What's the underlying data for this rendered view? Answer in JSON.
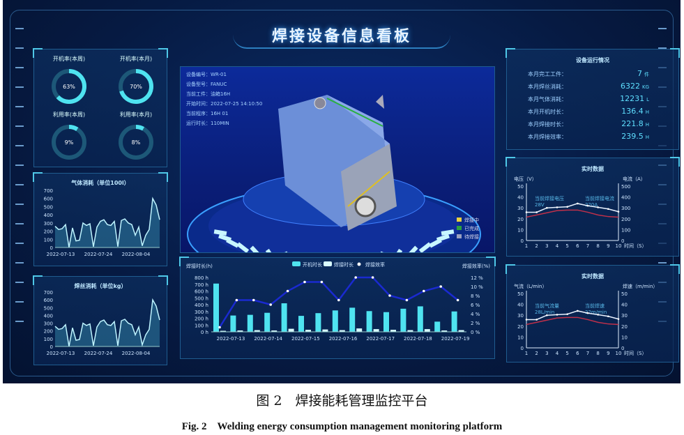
{
  "dashboard_title": "焊接设备信息看板",
  "gauges": [
    {
      "label": "开机率(本周)",
      "value": 63,
      "text": "63%"
    },
    {
      "label": "开机率(本月)",
      "value": 70,
      "text": "70%"
    },
    {
      "label": "利用率(本周)",
      "value": 9,
      "text": "9%"
    },
    {
      "label": "利用率(本月)",
      "value": 8,
      "text": "8%"
    }
  ],
  "colors": {
    "accent": "#4fe3f0",
    "bar_on": "#4fe3f0",
    "bar_weld": "#d8fbff",
    "line_eff": "#1a2ad0",
    "line_white": "#e8f2ff",
    "line_red": "#c0304a",
    "bg": "#061a42"
  },
  "chart_data": [
    {
      "type": "area",
      "title": "气体消耗（单位100l）",
      "ylim": [
        0,
        700
      ],
      "yticks": [
        0,
        100,
        200,
        300,
        400,
        500,
        600,
        700
      ],
      "xticks": [
        "2022-07-13",
        "2022-07-24",
        "2022-08-04"
      ],
      "values": [
        260,
        220,
        230,
        280,
        0,
        240,
        80,
        90,
        300,
        270,
        290,
        10,
        250,
        320,
        340,
        280,
        270,
        320,
        10,
        330,
        350,
        300,
        280,
        150,
        250,
        20,
        150,
        220,
        600,
        520,
        340
      ]
    },
    {
      "type": "area",
      "title": "焊丝消耗（单位kg）",
      "ylim": [
        0,
        700
      ],
      "yticks": [
        0,
        100,
        200,
        300,
        400,
        500,
        600,
        700
      ],
      "xticks": [
        "2022-07-13",
        "2022-07-24",
        "2022-08-04"
      ],
      "values": [
        260,
        220,
        230,
        280,
        0,
        240,
        80,
        90,
        300,
        270,
        290,
        10,
        250,
        320,
        340,
        280,
        270,
        320,
        10,
        330,
        350,
        300,
        280,
        150,
        250,
        20,
        150,
        220,
        600,
        520,
        340
      ]
    },
    {
      "type": "bar",
      "ylabel": "焊接时长(h)",
      "y2label": "焊接效率(%)",
      "ylim": [
        0,
        800
      ],
      "y2lim": [
        0,
        12
      ],
      "yticks": [
        "0 h",
        "100 h",
        "200 h",
        "300 h",
        "400 h",
        "500 h",
        "600 h",
        "700 h",
        "800 h"
      ],
      "y2ticks": [
        "0 %",
        "2 %",
        "4 %",
        "6 %",
        "8 %",
        "10 %",
        "12 %"
      ],
      "xticks": [
        "2022-07-13",
        "2022-07-14",
        "2022-07-15",
        "2022-07-16",
        "2022-07-17",
        "2022-07-18",
        "2022-07-19"
      ],
      "series": [
        {
          "name": "开机时长",
          "values": [
            710,
            240,
            250,
            280,
            420,
            235,
            275,
            315,
            355,
            305,
            290,
            340,
            375,
            150,
            300
          ]
        },
        {
          "name": "焊接时长",
          "values": [
            15,
            20,
            25,
            20,
            45,
            30,
            35,
            25,
            50,
            40,
            30,
            25,
            40,
            20,
            25
          ]
        },
        {
          "name": "焊接效率",
          "values": [
            1,
            7,
            7,
            6,
            9,
            11,
            11,
            7,
            12,
            12,
            8,
            7,
            9,
            10,
            7
          ]
        }
      ]
    },
    {
      "type": "line",
      "title": "实时数据",
      "ylabel": "电压（V）",
      "y2label": "电流（A）",
      "xlabel": "时间（S）",
      "ylim": [
        0,
        50
      ],
      "y2lim": [
        0,
        500
      ],
      "yticks": [
        0,
        10,
        20,
        30,
        40,
        50
      ],
      "y2ticks": [
        0,
        100,
        200,
        300,
        400,
        500
      ],
      "x": [
        1,
        2,
        3,
        4,
        5,
        6,
        7,
        8,
        9,
        10
      ],
      "annot_left": [
        "当前焊接电压",
        "28V"
      ],
      "annot_right": [
        "当前焊接电流",
        "220A"
      ],
      "series": [
        {
          "values": [
            26,
            26,
            30,
            30.5,
            31,
            34,
            32,
            30.5,
            29,
            26.5
          ]
        },
        {
          "values": [
            21.5,
            23.5,
            25.5,
            27.5,
            28,
            28,
            26,
            23.5,
            22,
            21.5
          ]
        }
      ]
    },
    {
      "type": "line",
      "title": "实时数据",
      "ylabel": "气流（L/min）",
      "y2label": "焊速（m/min）",
      "xlabel": "时间（S）",
      "ylim": [
        0,
        50
      ],
      "y2lim": [
        0,
        50
      ],
      "yticks": [
        0,
        10,
        20,
        30,
        40,
        50
      ],
      "y2ticks": [
        0,
        10,
        20,
        30,
        40,
        50
      ],
      "x": [
        1,
        2,
        3,
        4,
        5,
        6,
        7,
        8,
        9,
        10
      ],
      "annot_left": [
        "当前气流量",
        "28L/min"
      ],
      "annot_right": [
        "当前焊速",
        "22m/min"
      ],
      "series": [
        {
          "values": [
            26,
            26,
            30,
            30.5,
            31,
            34,
            32,
            30.5,
            29,
            26.5
          ]
        },
        {
          "values": [
            21.5,
            23.5,
            25.5,
            27.5,
            28,
            28,
            26,
            23.5,
            22,
            21.5
          ]
        }
      ]
    }
  ],
  "device_info": [
    {
      "label": "设备编号：",
      "value": "WR-01"
    },
    {
      "label": "设备型号：",
      "value": "FANUC"
    },
    {
      "label": "当前工件：",
      "value": "油箱16H"
    },
    {
      "label": "开始时间：",
      "value": "2022-07-25 14:10:50"
    },
    {
      "label": "当前程序：",
      "value": "16H 01"
    },
    {
      "label": "运行时长：",
      "value": "110MIN"
    }
  ],
  "status_legend": [
    {
      "label": "焊接中",
      "color": "#e8d040"
    },
    {
      "label": "已完成",
      "color": "#2aa040"
    },
    {
      "label": "待焊接",
      "color": "#9aa0c0"
    }
  ],
  "stats": {
    "title": "设备运行情况",
    "items": [
      {
        "label": "本月完工工件：",
        "value": "7",
        "unit": "件"
      },
      {
        "label": "本月焊丝消耗：",
        "value": "6322",
        "unit": "KG"
      },
      {
        "label": "本月气体消耗：",
        "value": "12231",
        "unit": "L"
      },
      {
        "label": "本月开机时长：",
        "value": "136.4",
        "unit": "H"
      },
      {
        "label": "本月焊接时长：",
        "value": "221.8",
        "unit": "H"
      },
      {
        "label": "本月焊接效率：",
        "value": "239.5",
        "unit": "H"
      }
    ]
  },
  "caption": {
    "cn": "图 2　焊接能耗管理监控平台",
    "en": "Fig. 2　Welding energy consumption management monitoring platform"
  }
}
